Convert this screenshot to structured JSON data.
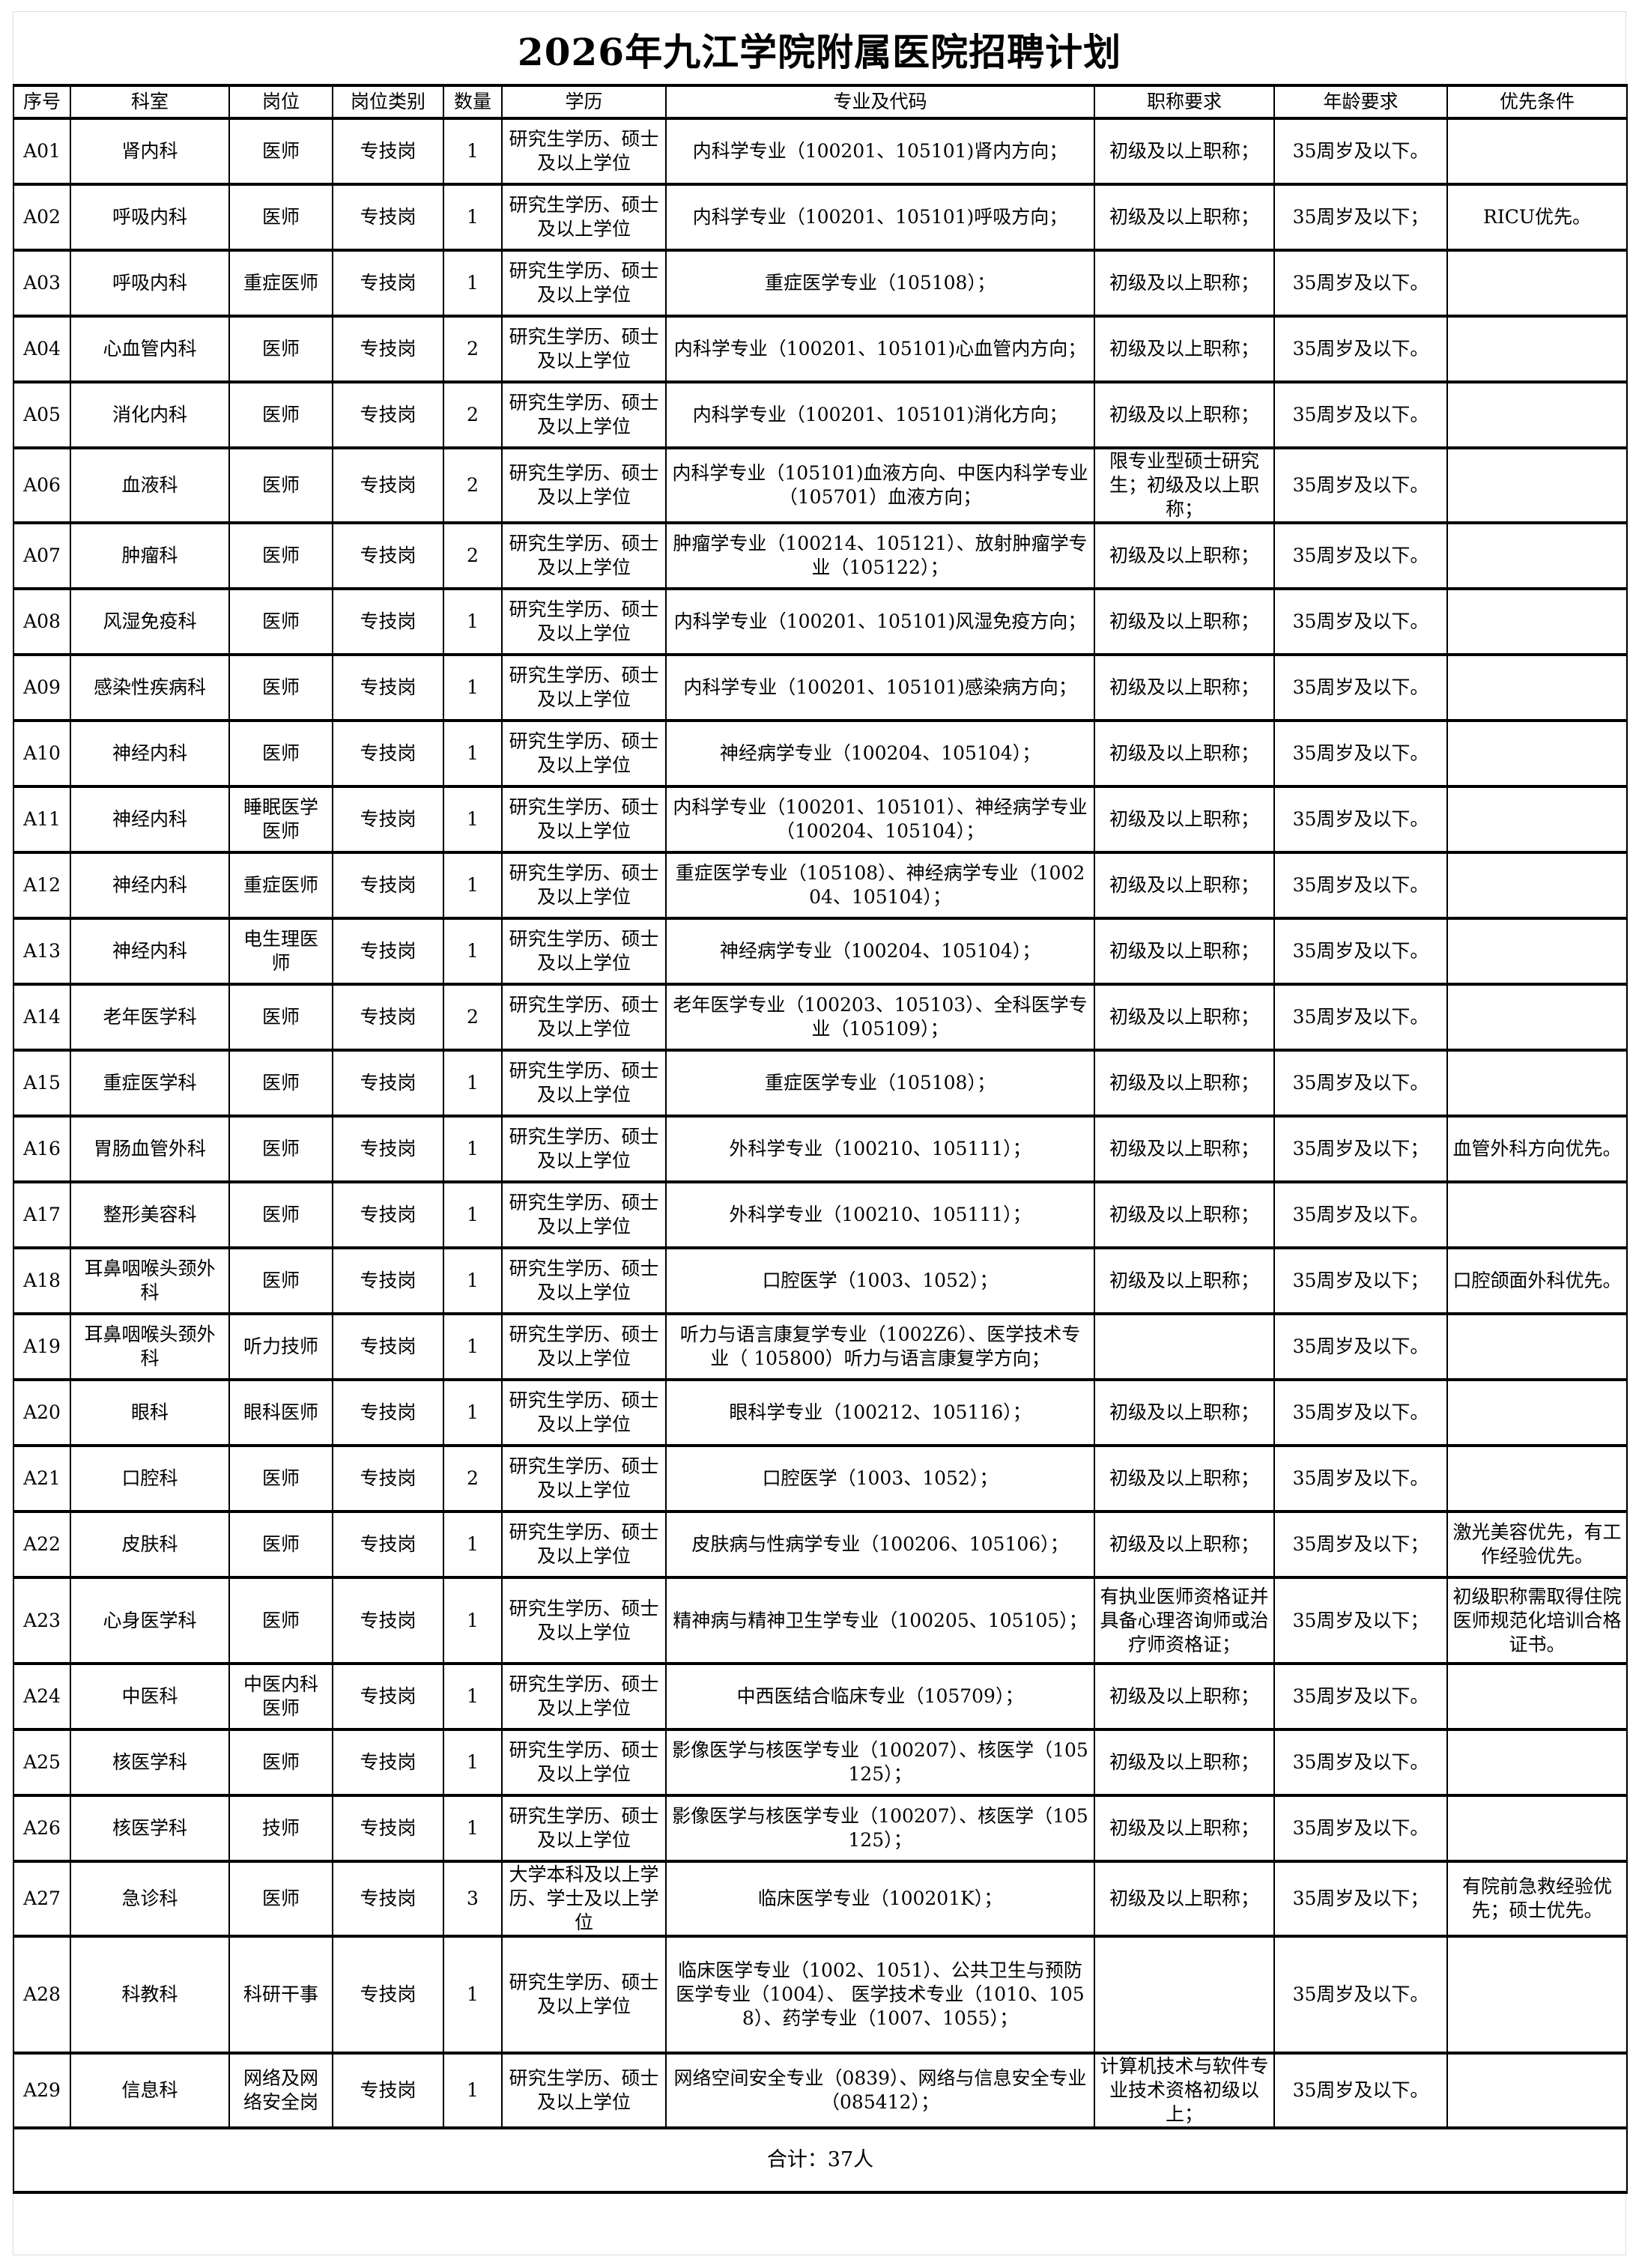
{
  "title": "2026年九江学院附属医院招聘计划",
  "headers": [
    "序号",
    "科室",
    "岗位",
    "岗位类别",
    "数量",
    "学历",
    "专业及代码",
    "职称要求",
    "年龄要求",
    "优先条件"
  ],
  "rows": [
    [
      "A01",
      "肾内科",
      "医师",
      "专技岗",
      "1",
      "研究生学历、硕士及以上学位",
      "内科学专业（100201、105101)肾内方向；",
      "初级及以上职称；",
      "35周岁及以下。",
      ""
    ],
    [
      "A02",
      "呼吸内科",
      "医师",
      "专技岗",
      "1",
      "研究生学历、硕士及以上学位",
      "内科学专业（100201、105101)呼吸方向；",
      "初级及以上职称；",
      "35周岁及以下；",
      "RICU优先。"
    ],
    [
      "A03",
      "呼吸内科",
      "重症医师",
      "专技岗",
      "1",
      "研究生学历、硕士及以上学位",
      "重症医学专业（105108）；",
      "初级及以上职称；",
      "35周岁及以下。",
      ""
    ],
    [
      "A04",
      "心血管内科",
      "医师",
      "专技岗",
      "2",
      "研究生学历、硕士及以上学位",
      "内科学专业（100201、105101)心血管内方向；",
      "初级及以上职称；",
      "35周岁及以下。",
      ""
    ],
    [
      "A05",
      "消化内科",
      "医师",
      "专技岗",
      "2",
      "研究生学历、硕士及以上学位",
      "内科学专业（100201、105101)消化方向；",
      "初级及以上职称；",
      "35周岁及以下。",
      ""
    ],
    [
      "A06",
      "血液科",
      "医师",
      "专技岗",
      "2",
      "研究生学历、硕士及以上学位",
      "内科学专业（105101)血液方向、中医内科学专业（105701）血液方向；",
      "限专业型硕士研究生；初级及以上职称；",
      "35周岁及以下。",
      ""
    ],
    [
      "A07",
      "肿瘤科",
      "医师",
      "专技岗",
      "2",
      "研究生学历、硕士及以上学位",
      "肿瘤学专业（100214、105121）、放射肿瘤学专业（105122）；",
      "初级及以上职称；",
      "35周岁及以下。",
      ""
    ],
    [
      "A08",
      "风湿免疫科",
      "医师",
      "专技岗",
      "1",
      "研究生学历、硕士及以上学位",
      "内科学专业（100201、105101)风湿免疫方向；",
      "初级及以上职称；",
      "35周岁及以下。",
      ""
    ],
    [
      "A09",
      "感染性疾病科",
      "医师",
      "专技岗",
      "1",
      "研究生学历、硕士及以上学位",
      "内科学专业（100201、105101)感染病方向；",
      "初级及以上职称；",
      "35周岁及以下。",
      ""
    ],
    [
      "A10",
      "神经内科",
      "医师",
      "专技岗",
      "1",
      "研究生学历、硕士及以上学位",
      "神经病学专业（100204、105104）；",
      "初级及以上职称；",
      "35周岁及以下。",
      ""
    ],
    [
      "A11",
      "神经内科",
      "睡眠医学医师",
      "专技岗",
      "1",
      "研究生学历、硕士及以上学位",
      "内科学专业（100201、105101）、神经病学专业（100204、105104）；",
      "初级及以上职称；",
      "35周岁及以下。",
      ""
    ],
    [
      "A12",
      "神经内科",
      "重症医师",
      "专技岗",
      "1",
      "研究生学历、硕士及以上学位",
      "重症医学专业（105108）、神经病学专业（100204、105104）；",
      "初级及以上职称；",
      "35周岁及以下。",
      ""
    ],
    [
      "A13",
      "神经内科",
      "电生理医师",
      "专技岗",
      "1",
      "研究生学历、硕士及以上学位",
      "神经病学专业（100204、105104）；",
      "初级及以上职称；",
      "35周岁及以下。",
      ""
    ],
    [
      "A14",
      "老年医学科",
      "医师",
      "专技岗",
      "2",
      "研究生学历、硕士及以上学位",
      "老年医学专业（100203、105103）、全科医学专业（105109）；",
      "初级及以上职称；",
      "35周岁及以下。",
      ""
    ],
    [
      "A15",
      "重症医学科",
      "医师",
      "专技岗",
      "1",
      "研究生学历、硕士及以上学位",
      "重症医学专业（105108）；",
      "初级及以上职称；",
      "35周岁及以下。",
      ""
    ],
    [
      "A16",
      "胃肠血管外科",
      "医师",
      "专技岗",
      "1",
      "研究生学历、硕士及以上学位",
      "外科学专业（100210、105111）；",
      "初级及以上职称；",
      "35周岁及以下；",
      "血管外科方向优先。"
    ],
    [
      "A17",
      "整形美容科",
      "医师",
      "专技岗",
      "1",
      "研究生学历、硕士及以上学位",
      "外科学专业（100210、105111）；",
      "初级及以上职称；",
      "35周岁及以下。",
      ""
    ],
    [
      "A18",
      "耳鼻咽喉头颈外科",
      "医师",
      "专技岗",
      "1",
      "研究生学历、硕士及以上学位",
      "口腔医学（1003、1052）；",
      "初级及以上职称；",
      "35周岁及以下；",
      "口腔颌面外科优先。"
    ],
    [
      "A19",
      "耳鼻咽喉头颈外科",
      "听力技师",
      "专技岗",
      "1",
      "研究生学历、硕士及以上学位",
      "听力与语言康复学专业（1002Z6）、医学技术专业（ 105800）听力与语言康复学方向；",
      "",
      "35周岁及以下。",
      ""
    ],
    [
      "A20",
      "眼科",
      "眼科医师",
      "专技岗",
      "1",
      "研究生学历、硕士及以上学位",
      "眼科学专业（100212、105116）；",
      "初级及以上职称；",
      "35周岁及以下。",
      ""
    ],
    [
      "A21",
      "口腔科",
      "医师",
      "专技岗",
      "2",
      "研究生学历、硕士及以上学位",
      "口腔医学（1003、1052）；",
      "初级及以上职称；",
      "35周岁及以下。",
      ""
    ],
    [
      "A22",
      "皮肤科",
      "医师",
      "专技岗",
      "1",
      "研究生学历、硕士及以上学位",
      "皮肤病与性病学专业（100206、105106）；",
      "初级及以上职称；",
      "35周岁及以下；",
      "激光美容优先，有工作经验优先。"
    ],
    [
      "A23",
      "心身医学科",
      "医师",
      "专技岗",
      "1",
      "研究生学历、硕士及以上学位",
      "精神病与精神卫生学专业（100205、105105）；",
      "有执业医师资格证并具备心理咨询师或治疗师资格证；",
      "35周岁及以下；",
      "初级职称需取得住院医师规范化培训合格证书。"
    ],
    [
      "A24",
      "中医科",
      "中医内科医师",
      "专技岗",
      "1",
      "研究生学历、硕士及以上学位",
      "中西医结合临床专业（105709）；",
      "初级及以上职称；",
      "35周岁及以下。",
      ""
    ],
    [
      "A25",
      "核医学科",
      "医师",
      "专技岗",
      "1",
      "研究生学历、硕士及以上学位",
      "影像医学与核医学专业（100207）、核医学（105125）；",
      "初级及以上职称；",
      "35周岁及以下。",
      ""
    ],
    [
      "A26",
      "核医学科",
      "技师",
      "专技岗",
      "1",
      "研究生学历、硕士及以上学位",
      "影像医学与核医学专业（100207）、核医学（105125）；",
      "初级及以上职称；",
      "35周岁及以下。",
      ""
    ],
    [
      "A27",
      "急诊科",
      "医师",
      "专技岗",
      "3",
      "大学本科及以上学历、学士及以上学位",
      "临床医学专业（100201K）；",
      "初级及以上职称；",
      "35周岁及以下；",
      "有院前急救经验优先；硕士优先。"
    ],
    [
      "A28",
      "科教科",
      "科研干事",
      "专技岗",
      "1",
      "研究生学历、硕士及以上学位",
      "临床医学专业（1002、1051）、公共卫生与预防医学专业（1004）、 医学技术专业（1010、1058）、药学专业（1007、1055）；",
      "",
      "35周岁及以下。",
      ""
    ],
    [
      "A29",
      "信息科",
      "网络及网络安全岗",
      "专技岗",
      "1",
      "研究生学历、硕士及以上学位",
      "网络空间安全专业（0839）、网络与信息安全专业（085412）；",
      "计算机技术与软件专业技术资格初级以上；",
      "35周岁及以下。",
      ""
    ]
  ],
  "total": "合计：37人"
}
